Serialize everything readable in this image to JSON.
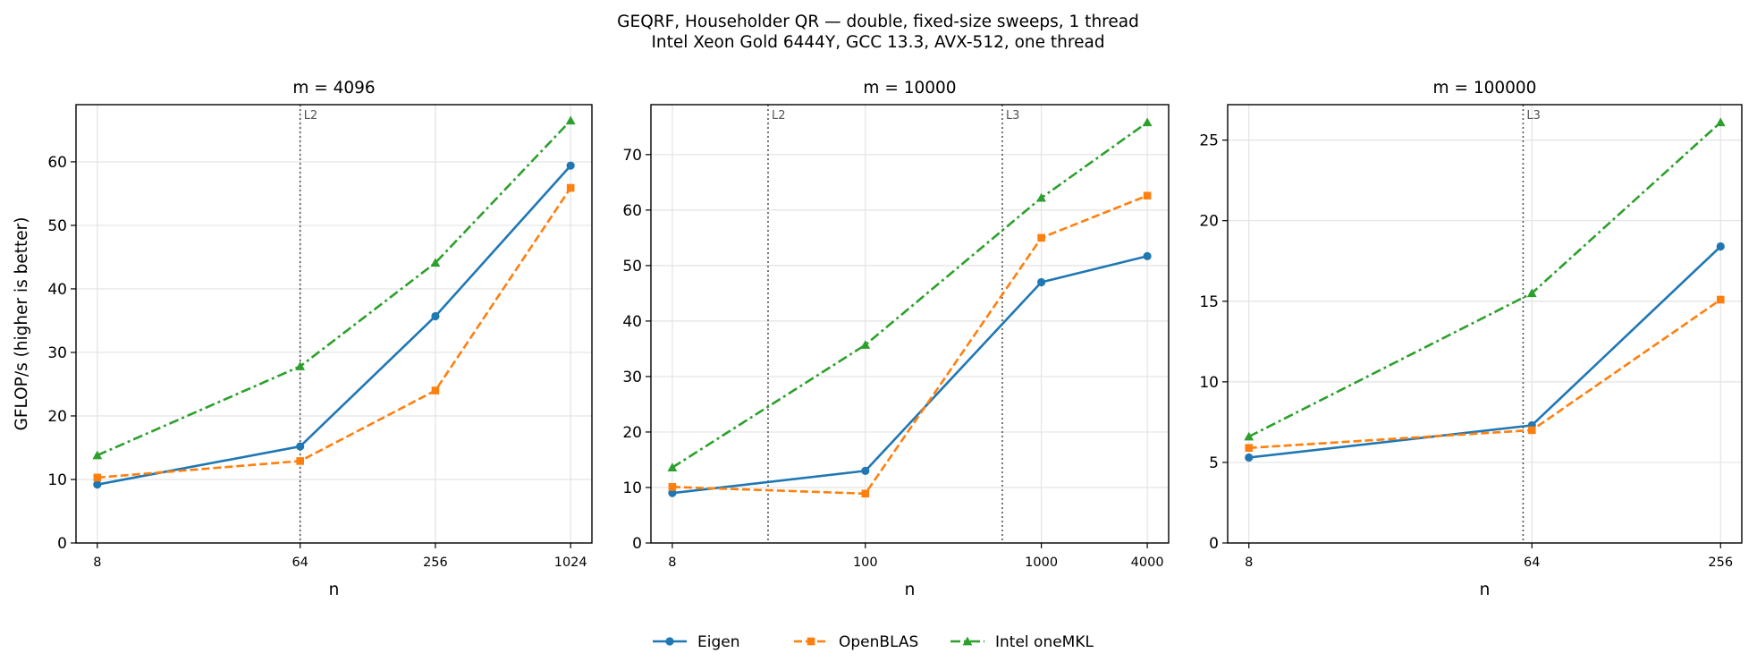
{
  "figure": {
    "title_line1": "GEQRF, Householder QR — double, fixed-size sweeps, 1 thread",
    "title_line2": "Intel Xeon Gold 6444Y, GCC 13.3, AVX-512, one thread"
  },
  "colors": {
    "Eigen": "#1f77b4",
    "OpenBLAS": "#ff7f0e",
    "Intel oneMKL": "#2ca02c"
  },
  "legend": [
    {
      "name": "Eigen",
      "marker": "circle",
      "dash": "solid"
    },
    {
      "name": "OpenBLAS",
      "marker": "square",
      "dash": "dashed"
    },
    {
      "name": "Intel oneMKL",
      "marker": "triangle",
      "dash": "dashdot"
    }
  ],
  "chart_data": [
    {
      "type": "line",
      "title": "m = 4096",
      "xlabel": "n",
      "ylabel": "GFLOP/s (higher is better)",
      "xscale": "log",
      "x": [
        8,
        64,
        256,
        1024
      ],
      "x_tick_labels": [
        "8",
        "64",
        "256",
        "1024"
      ],
      "ylim": [
        0,
        69
      ],
      "y_ticks": [
        0,
        10,
        20,
        30,
        40,
        50,
        60
      ],
      "grid": true,
      "cache_markers": [
        {
          "label": "L2",
          "x": 64
        }
      ],
      "series": [
        {
          "name": "Eigen",
          "values": [
            9.2,
            15.2,
            35.7,
            59.4
          ]
        },
        {
          "name": "OpenBLAS",
          "values": [
            10.3,
            12.9,
            24.0,
            55.9
          ]
        },
        {
          "name": "Intel oneMKL",
          "values": [
            13.8,
            27.8,
            44.1,
            66.5
          ]
        }
      ]
    },
    {
      "type": "line",
      "title": "m = 10000",
      "xlabel": "n",
      "ylabel": "",
      "xscale": "log",
      "x": [
        8,
        100,
        1000,
        4000
      ],
      "x_tick_labels": [
        "8",
        "100",
        "1000",
        "4000"
      ],
      "ylim": [
        0,
        79
      ],
      "y_ticks": [
        0,
        10,
        20,
        30,
        40,
        50,
        60,
        70
      ],
      "grid": true,
      "cache_markers": [
        {
          "label": "L2",
          "x": 28
        },
        {
          "label": "L3",
          "x": 600
        }
      ],
      "series": [
        {
          "name": "Eigen",
          "values": [
            9.0,
            13.0,
            47.0,
            51.7
          ]
        },
        {
          "name": "OpenBLAS",
          "values": [
            10.1,
            8.9,
            55.0,
            62.6
          ]
        },
        {
          "name": "Intel oneMKL",
          "values": [
            13.6,
            35.7,
            62.2,
            75.8
          ]
        }
      ]
    },
    {
      "type": "line",
      "title": "m = 100000",
      "xlabel": "n",
      "ylabel": "",
      "xscale": "log",
      "x": [
        8,
        64,
        256
      ],
      "x_tick_labels": [
        "8",
        "64",
        "256"
      ],
      "ylim": [
        0,
        27.2
      ],
      "y_ticks": [
        0,
        5,
        10,
        15,
        20,
        25
      ],
      "grid": true,
      "cache_markers": [
        {
          "label": "L3",
          "x": 60
        }
      ],
      "series": [
        {
          "name": "Eigen",
          "values": [
            5.3,
            7.3,
            18.4
          ]
        },
        {
          "name": "OpenBLAS",
          "values": [
            5.9,
            7.0,
            15.1
          ]
        },
        {
          "name": "Intel oneMKL",
          "values": [
            6.6,
            15.5,
            26.1
          ]
        }
      ]
    }
  ]
}
